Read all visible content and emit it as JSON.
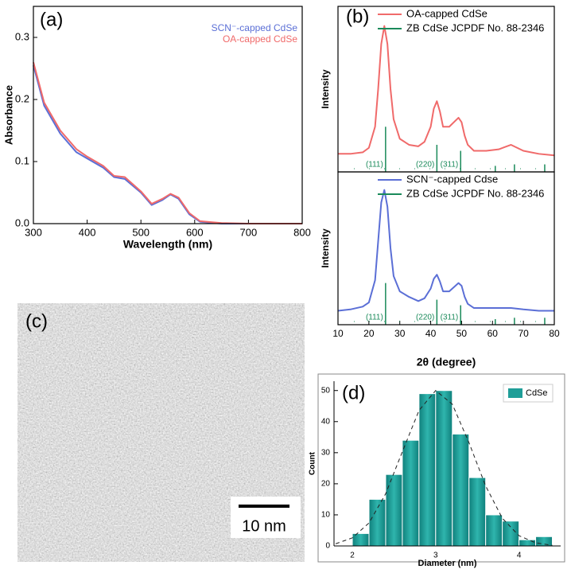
{
  "chart_data": [
    {
      "type": "line",
      "panel_label": "(a)",
      "xlabel": "Wavelength (nm)",
      "ylabel": "Absorbance",
      "x": [
        300,
        320,
        350,
        380,
        400,
        430,
        450,
        470,
        500,
        520,
        540,
        555,
        570,
        590,
        610,
        650,
        700,
        800
      ],
      "series": [
        {
          "name": "SCN⁻-capped CdSe",
          "color": "#5b6fd6",
          "values": [
            0.255,
            0.19,
            0.145,
            0.115,
            0.105,
            0.09,
            0.075,
            0.072,
            0.05,
            0.03,
            0.038,
            0.047,
            0.04,
            0.015,
            0.003,
            0,
            0,
            0
          ]
        },
        {
          "name": "OA-capped CdSe",
          "color": "#f06a6a",
          "values": [
            0.26,
            0.195,
            0.15,
            0.12,
            0.108,
            0.093,
            0.077,
            0.075,
            0.052,
            0.032,
            0.04,
            0.048,
            0.042,
            0.017,
            0.004,
            0.001,
            0,
            0
          ]
        }
      ],
      "xlim": [
        300,
        800
      ],
      "ylim": [
        0,
        0.35
      ],
      "xticks": [
        300,
        400,
        500,
        600,
        700,
        800
      ],
      "yticks": [
        {
          "value": 0,
          "label": "0.0"
        },
        0.1,
        0.2,
        0.3
      ],
      "legend": "upper right"
    },
    {
      "type": "line",
      "panel_label": "(b)",
      "ylabel": "Intensity",
      "x": [
        10,
        14,
        18,
        20,
        22,
        23,
        24,
        25,
        26,
        27,
        28,
        30,
        33,
        36,
        38,
        40,
        41,
        42,
        43,
        44,
        46,
        48,
        49,
        50,
        51,
        52,
        54,
        58,
        62,
        66,
        70,
        75,
        80
      ],
      "series": [
        {
          "name": "OA-capped CdSe",
          "color": "#f06a6a",
          "values": [
            0.12,
            0.12,
            0.13,
            0.16,
            0.3,
            0.55,
            0.85,
            0.97,
            0.85,
            0.55,
            0.35,
            0.22,
            0.18,
            0.17,
            0.2,
            0.3,
            0.42,
            0.47,
            0.4,
            0.3,
            0.3,
            0.34,
            0.36,
            0.33,
            0.24,
            0.18,
            0.14,
            0.14,
            0.15,
            0.18,
            0.14,
            0.12,
            0.11
          ]
        }
      ],
      "reference": {
        "name": "ZB CdSe JCPDF No. 88-2346",
        "color": "#1a8a5a",
        "x": [
          25.4,
          42.0,
          49.7,
          60.9,
          67.1,
          76.9
        ],
        "values": [
          0.3,
          0.18,
          0.14,
          0.04,
          0.05,
          0.05
        ]
      },
      "annotations": [
        "(111)",
        "(220)",
        "(311)"
      ],
      "xlim": [
        10,
        80
      ],
      "ylim": [
        0,
        1.1
      ],
      "legend": "upper right"
    },
    {
      "type": "line",
      "ylabel": "Intensity",
      "xlabel": "2θ (degree)",
      "x": [
        10,
        14,
        18,
        20,
        22,
        23,
        24,
        25,
        26,
        27,
        28,
        30,
        33,
        36,
        38,
        40,
        41,
        42,
        43,
        44,
        46,
        48,
        49,
        50,
        51,
        52,
        54,
        58,
        62,
        66,
        70,
        75,
        80
      ],
      "series": [
        {
          "name": "SCN⁻-capped Cdse",
          "color": "#5b6fd6",
          "values": [
            0.1,
            0.11,
            0.13,
            0.16,
            0.32,
            0.6,
            0.88,
            0.97,
            0.85,
            0.55,
            0.35,
            0.24,
            0.2,
            0.17,
            0.19,
            0.26,
            0.33,
            0.36,
            0.31,
            0.24,
            0.24,
            0.28,
            0.3,
            0.28,
            0.2,
            0.15,
            0.12,
            0.12,
            0.12,
            0.12,
            0.11,
            0.1,
            0.1
          ]
        }
      ],
      "reference": {
        "name": "ZB CdSe JCPDF No. 88-2346",
        "color": "#1a8a5a",
        "x": [
          25.4,
          42.0,
          49.7,
          60.9,
          67.1,
          76.9
        ],
        "values": [
          0.3,
          0.18,
          0.14,
          0.04,
          0.05,
          0.05
        ]
      },
      "annotations": [
        "(111)",
        "(220)",
        "(311)"
      ],
      "xlim": [
        10,
        80
      ],
      "ylim": [
        0,
        1.1
      ],
      "xticks": [
        10,
        20,
        30,
        40,
        50,
        60,
        70,
        80
      ],
      "legend": "upper right"
    },
    {
      "type": "histogram",
      "panel_label": "(d)",
      "xlabel": "Diameter (nm)",
      "ylabel": "Count",
      "bins": [
        2.0,
        2.2,
        2.4,
        2.6,
        2.8,
        3.0,
        3.2,
        3.4,
        3.6,
        3.8,
        4.0,
        4.2,
        4.4
      ],
      "series": [
        {
          "name": "CdSe",
          "color": "#1f9e98",
          "values": [
            4,
            15,
            23,
            34,
            49,
            50,
            36,
            22,
            10,
            8,
            2,
            3
          ]
        }
      ],
      "fit": {
        "x": [
          1.8,
          2.0,
          2.2,
          2.4,
          2.6,
          2.8,
          3.0,
          3.2,
          3.4,
          3.6,
          3.8,
          4.0,
          4.2,
          4.4
        ],
        "values": [
          0.7,
          2.6,
          7.4,
          16.8,
          30.3,
          43.6,
          50,
          45.6,
          33.2,
          19.3,
          8.9,
          3.3,
          1.0,
          0.2
        ]
      },
      "xlim": [
        1.78,
        4.5
      ],
      "ylim": [
        0,
        53
      ],
      "xticks": [
        2,
        3,
        4
      ],
      "yticks": [
        0,
        10,
        20,
        30,
        40,
        50
      ],
      "legend": "upper right"
    }
  ],
  "image": {
    "panel_label": "(c)",
    "scale_bar": "10 nm"
  }
}
